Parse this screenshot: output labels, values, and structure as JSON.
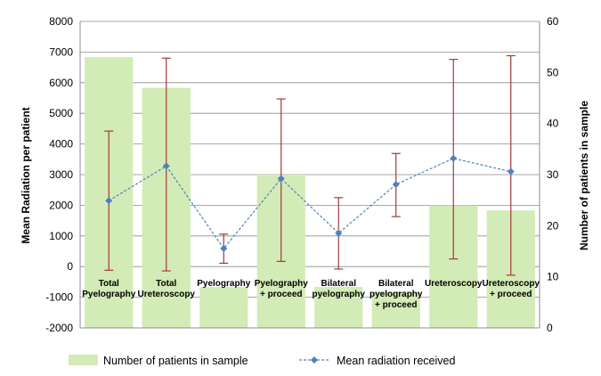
{
  "chart_data": {
    "type": "bar",
    "categories": [
      [
        "Total",
        "Pyelography"
      ],
      [
        "Total",
        "Ureteroscopy"
      ],
      [
        "Pyelography"
      ],
      [
        "Pyelography",
        "+ proceed"
      ],
      [
        "Bilateral",
        "pyelography"
      ],
      [
        "Bilateral",
        "pyelography",
        "+ proceed"
      ],
      [
        "Ureteroscopy"
      ],
      [
        "Ureteroscopy",
        "+ proceed"
      ]
    ],
    "series": [
      {
        "name": "Number of patients in sample",
        "type": "bar",
        "axis": "y2",
        "color": "#d3ebb6",
        "values": [
          53,
          47,
          8,
          30,
          8,
          7,
          24,
          23
        ]
      },
      {
        "name": "Mean radiation received",
        "type": "line",
        "axis": "y1",
        "color": "#4f81bd",
        "values": [
          2150,
          3280,
          590,
          2870,
          1090,
          2680,
          3530,
          3100
        ],
        "error_high": [
          4420,
          6800,
          1060,
          5470,
          2250,
          3690,
          6760,
          6880
        ],
        "error_low": [
          -120,
          -140,
          110,
          170,
          -80,
          1630,
          250,
          -280
        ],
        "error_color": "#a33a3a"
      }
    ],
    "xlabel": "",
    "ylabel": "Mean Radiation per patient",
    "y2label": "Number of patients in sample",
    "ylim": [
      -2000,
      8000
    ],
    "yticks": [
      -2000,
      -1000,
      0,
      1000,
      2000,
      3000,
      4000,
      5000,
      6000,
      7000,
      8000
    ],
    "y2lim": [
      0,
      60
    ],
    "y2ticks": [
      0,
      10,
      20,
      30,
      40,
      50,
      60
    ],
    "grid": true,
    "legend_position": "bottom"
  }
}
